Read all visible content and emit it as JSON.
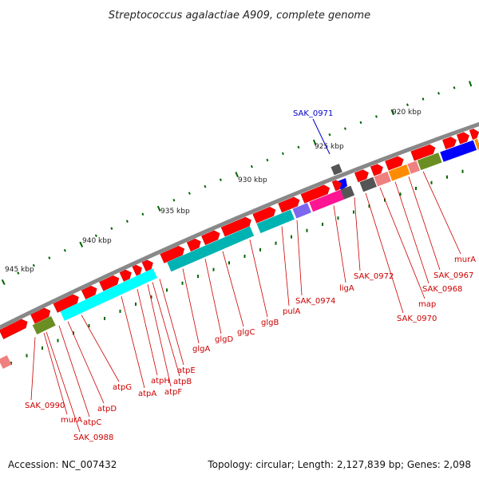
{
  "title": "Streptococcus agalactiae A909, complete genome",
  "accession": "Accession: NC_007432",
  "summary": "Topology: circular; Length: 2,127,839 bp; Genes: 2,098",
  "scale_labels": [
    "920 kbp",
    "925 kbp",
    "930 kbp",
    "935 kbp",
    "940 kbp",
    "945 kbp"
  ],
  "highlighted_gene": {
    "label": "SAK_0971",
    "color": "#0000cc"
  },
  "gene_labels": [
    "murA",
    "SAK_0967",
    "SAK_0968",
    "map",
    "SAK_0970",
    "SAK_0972",
    "ligA",
    "SAK_0974",
    "pulA",
    "glgB",
    "glgC",
    "glgD",
    "glgA",
    "atpE",
    "atpB",
    "atpF",
    "atpH",
    "atpA",
    "atpG",
    "atpD",
    "atpC",
    "SAK_0988",
    "murA",
    "SAK_0990"
  ],
  "colors": {
    "label_text": "#cc0000",
    "gene_forward": "#ff0000",
    "backbone": "#808080",
    "tick_mark": "#006600",
    "cyan": "#00ffff",
    "teal": "#00b3b3",
    "olive": "#6b8e23",
    "magenta": "#ff1493",
    "blue": "#0000ff",
    "orange": "#ff8c00",
    "dark_gray": "#555555",
    "pink": "#f08080"
  }
}
